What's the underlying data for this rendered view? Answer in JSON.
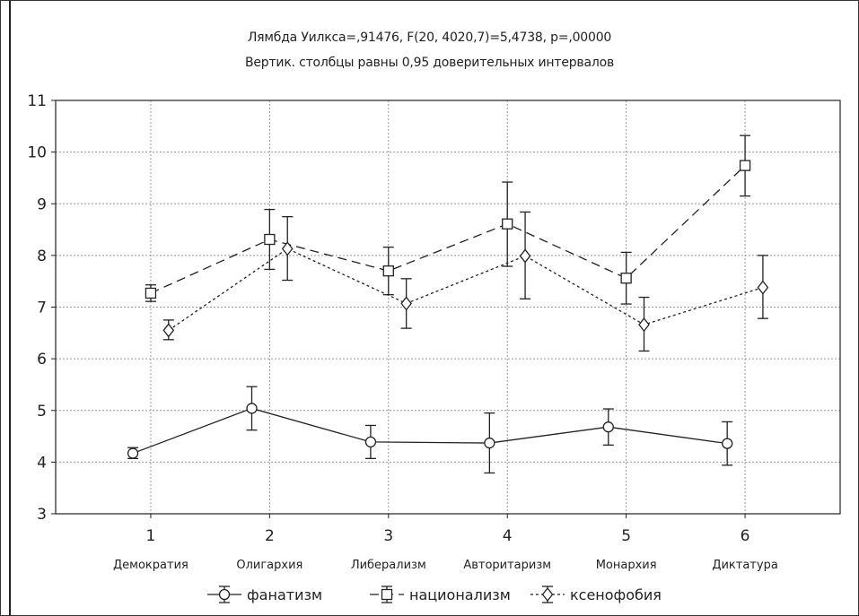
{
  "chart_data": {
    "type": "line",
    "title": "Лямбда Уилкса=,91476, F(20, 4020,7)=5,4738, p=,00000",
    "subtitle": "Вертик. столбцы равны 0,95 доверительных интервалов",
    "x": [
      1,
      2,
      3,
      4,
      5,
      6
    ],
    "x_tick_labels": [
      "1",
      "2",
      "3",
      "4",
      "5",
      "6"
    ],
    "categories": [
      "Демократия",
      "Олигархия",
      "Либерализм",
      "Авторитаризм",
      "Монархия",
      "Диктатура"
    ],
    "xlim": [
      0.2,
      6.8
    ],
    "ylim": [
      3,
      11
    ],
    "y_ticks": [
      "3",
      "4",
      "5",
      "6",
      "7",
      "8",
      "9",
      "10",
      "11"
    ],
    "grid": true,
    "legend_position": "bottom",
    "series": [
      {
        "name": "фанатизм",
        "marker": "circle",
        "line_style": "solid",
        "offset": -0.15,
        "values": [
          4.17,
          5.04,
          4.39,
          4.37,
          4.68,
          4.36
        ],
        "ci_low": [
          4.07,
          4.62,
          4.07,
          3.79,
          4.33,
          3.94
        ],
        "ci_high": [
          4.28,
          5.46,
          4.71,
          4.95,
          5.03,
          4.78
        ]
      },
      {
        "name": "национализм",
        "marker": "square",
        "line_style": "dashed",
        "offset": 0.0,
        "values": [
          7.27,
          8.31,
          7.7,
          8.61,
          7.56,
          9.74
        ],
        "ci_low": [
          7.11,
          7.73,
          7.24,
          7.79,
          7.06,
          9.15
        ],
        "ci_high": [
          7.43,
          8.89,
          8.16,
          9.42,
          8.06,
          10.32
        ]
      },
      {
        "name": "ксенофобия",
        "marker": "diamond",
        "line_style": "dotted",
        "offset": 0.15,
        "values": [
          6.55,
          8.13,
          7.07,
          7.99,
          6.66,
          7.38
        ],
        "ci_low": [
          6.37,
          7.52,
          6.59,
          7.16,
          6.15,
          6.78
        ],
        "ci_high": [
          6.75,
          8.75,
          7.55,
          8.84,
          7.19,
          8.0
        ]
      }
    ]
  }
}
